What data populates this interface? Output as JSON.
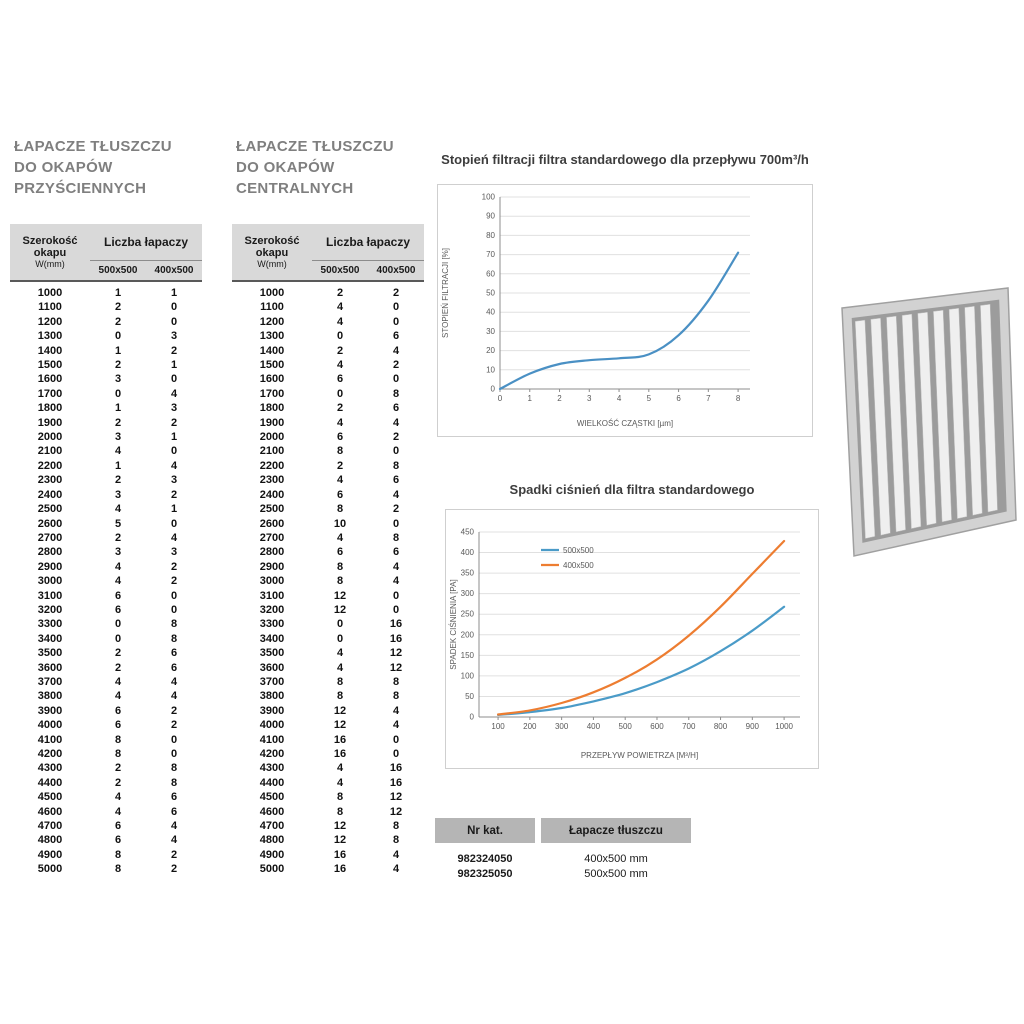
{
  "left_table": {
    "title_lines": [
      "ŁAPACZE TŁUSZCZU",
      "DO OKAPÓW",
      "PRZYŚCIENNYCH"
    ],
    "header": {
      "width_label_line1": "Szerokość",
      "width_label_line2": "okapu",
      "width_unit": "W(mm)",
      "count_label": "Liczba łapaczy",
      "sub_columns": [
        "500x500",
        "400x500"
      ]
    },
    "rows": [
      [
        1000,
        1,
        1
      ],
      [
        1100,
        2,
        0
      ],
      [
        1200,
        2,
        0
      ],
      [
        1300,
        0,
        3
      ],
      [
        1400,
        1,
        2
      ],
      [
        1500,
        2,
        1
      ],
      [
        1600,
        3,
        0
      ],
      [
        1700,
        0,
        4
      ],
      [
        1800,
        1,
        3
      ],
      [
        1900,
        2,
        2
      ],
      [
        2000,
        3,
        1
      ],
      [
        2100,
        4,
        0
      ],
      [
        2200,
        1,
        4
      ],
      [
        2300,
        2,
        3
      ],
      [
        2400,
        3,
        2
      ],
      [
        2500,
        4,
        1
      ],
      [
        2600,
        5,
        0
      ],
      [
        2700,
        2,
        4
      ],
      [
        2800,
        3,
        3
      ],
      [
        2900,
        4,
        2
      ],
      [
        3000,
        4,
        2
      ],
      [
        3100,
        6,
        0
      ],
      [
        3200,
        6,
        0
      ],
      [
        3300,
        0,
        8
      ],
      [
        3400,
        0,
        8
      ],
      [
        3500,
        2,
        6
      ],
      [
        3600,
        2,
        6
      ],
      [
        3700,
        4,
        4
      ],
      [
        3800,
        4,
        4
      ],
      [
        3900,
        6,
        2
      ],
      [
        4000,
        6,
        2
      ],
      [
        4100,
        8,
        0
      ],
      [
        4200,
        8,
        0
      ],
      [
        4300,
        2,
        8
      ],
      [
        4400,
        2,
        8
      ],
      [
        4500,
        4,
        6
      ],
      [
        4600,
        4,
        6
      ],
      [
        4700,
        6,
        4
      ],
      [
        4800,
        6,
        4
      ],
      [
        4900,
        8,
        2
      ],
      [
        5000,
        8,
        2
      ]
    ]
  },
  "center_table": {
    "title_lines": [
      "ŁAPACZE TŁUSZCZU",
      "DO OKAPÓW",
      "CENTRALNYCH"
    ],
    "header": {
      "width_label_line1": "Szerokość",
      "width_label_line2": "okapu",
      "width_unit": "W(mm)",
      "count_label": "Liczba łapaczy",
      "sub_columns": [
        "500x500",
        "400x500"
      ]
    },
    "rows": [
      [
        1000,
        2,
        2
      ],
      [
        1100,
        4,
        0
      ],
      [
        1200,
        4,
        0
      ],
      [
        1300,
        0,
        6
      ],
      [
        1400,
        2,
        4
      ],
      [
        1500,
        4,
        2
      ],
      [
        1600,
        6,
        0
      ],
      [
        1700,
        0,
        8
      ],
      [
        1800,
        2,
        6
      ],
      [
        1900,
        4,
        4
      ],
      [
        2000,
        6,
        2
      ],
      [
        2100,
        8,
        0
      ],
      [
        2200,
        2,
        8
      ],
      [
        2300,
        4,
        6
      ],
      [
        2400,
        6,
        4
      ],
      [
        2500,
        8,
        2
      ],
      [
        2600,
        10,
        0
      ],
      [
        2700,
        4,
        8
      ],
      [
        2800,
        6,
        6
      ],
      [
        2900,
        8,
        4
      ],
      [
        3000,
        8,
        4
      ],
      [
        3100,
        12,
        0
      ],
      [
        3200,
        12,
        0
      ],
      [
        3300,
        0,
        16
      ],
      [
        3400,
        0,
        16
      ],
      [
        3500,
        4,
        12
      ],
      [
        3600,
        4,
        12
      ],
      [
        3700,
        8,
        8
      ],
      [
        3800,
        8,
        8
      ],
      [
        3900,
        12,
        4
      ],
      [
        4000,
        12,
        4
      ],
      [
        4100,
        16,
        0
      ],
      [
        4200,
        16,
        0
      ],
      [
        4300,
        4,
        16
      ],
      [
        4400,
        4,
        16
      ],
      [
        4500,
        8,
        12
      ],
      [
        4600,
        8,
        12
      ],
      [
        4700,
        12,
        8
      ],
      [
        4800,
        12,
        8
      ],
      [
        4900,
        16,
        4
      ],
      [
        5000,
        16,
        4
      ]
    ]
  },
  "chart_data": [
    {
      "type": "line",
      "title": "Stopień filtracji filtra standardowego dla przepływu 700m³/h",
      "xlabel": "WIELKOŚĆ CZĄSTKI [µm]",
      "ylabel": "STOPIEŃ FILTRACJI [%]",
      "x": [
        0,
        1,
        2,
        3,
        4,
        5,
        6,
        7,
        8
      ],
      "series": [
        {
          "name": "",
          "color": "#4a90c4",
          "values": [
            0,
            8,
            13,
            15,
            16,
            18,
            28,
            46,
            71
          ]
        }
      ],
      "x_ticks": [
        0,
        1,
        2,
        3,
        4,
        5,
        6,
        7,
        8
      ],
      "y_ticks": [
        0,
        10,
        20,
        30,
        40,
        50,
        60,
        70,
        80,
        90,
        100
      ],
      "xlim": [
        0,
        8.4
      ],
      "ylim": [
        0,
        100
      ],
      "grid": true,
      "legend": null
    },
    {
      "type": "line",
      "title": "Spadki ciśnień dla filtra standardowego",
      "xlabel": "PRZEPŁYW POWIETRZA [M³/H]",
      "ylabel": "SPADEK CIŚNIENIA [PA]",
      "x": [
        100,
        200,
        300,
        400,
        500,
        600,
        700,
        800,
        900,
        1000
      ],
      "series": [
        {
          "name": "500x500",
          "color": "#4a9bc8",
          "values": [
            5,
            12,
            22,
            38,
            58,
            85,
            118,
            160,
            210,
            268
          ]
        },
        {
          "name": "400x500",
          "color": "#ed7d31",
          "values": [
            6,
            16,
            34,
            60,
            95,
            140,
            198,
            268,
            348,
            428
          ]
        }
      ],
      "x_ticks": [
        100,
        200,
        300,
        400,
        500,
        600,
        700,
        800,
        900,
        1000
      ],
      "y_ticks": [
        0,
        50,
        100,
        150,
        200,
        250,
        300,
        350,
        400,
        450
      ],
      "xlim": [
        40,
        1050
      ],
      "ylim": [
        0,
        450
      ],
      "grid": true,
      "legend": "top-center"
    }
  ],
  "catalog_table": {
    "headers": [
      "Nr kat.",
      "Łapacze tłuszczu"
    ],
    "rows": [
      [
        "982324050",
        "400x500 mm"
      ],
      [
        "982325050",
        "500x500 mm"
      ]
    ]
  },
  "colors": {
    "accent_blue": "#4a9bc8",
    "accent_orange": "#ed7d31",
    "table_header_bg": "#d9d9d9",
    "title_gray": "#7f7f7f"
  }
}
